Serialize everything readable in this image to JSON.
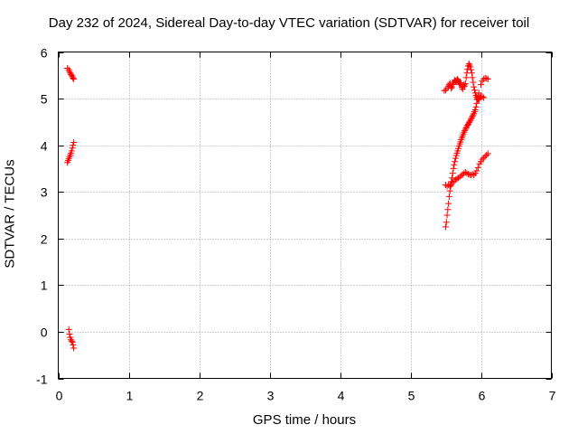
{
  "chart_data": {
    "type": "scatter",
    "title": "Day 232 of 2024, Sidereal Day-to-day VTEC variation (SDTVAR) for receiver toil",
    "xlabel": "GPS time / hours",
    "ylabel": "SDTVAR / TECUs",
    "xlim": [
      0,
      7
    ],
    "ylim": [
      -1,
      6
    ],
    "xticks": [
      0,
      1,
      2,
      3,
      4,
      5,
      6,
      7
    ],
    "yticks": [
      -1,
      0,
      1,
      2,
      3,
      4,
      5,
      6
    ],
    "grid": true,
    "marker": "+",
    "marker_color": "#ff0000",
    "series": [
      {
        "name": "SDTVAR",
        "points": [
          [
            0.13,
            5.65
          ],
          [
            0.15,
            5.62
          ],
          [
            0.16,
            5.58
          ],
          [
            0.17,
            5.55
          ],
          [
            0.18,
            5.52
          ],
          [
            0.19,
            5.5
          ],
          [
            0.2,
            5.47
          ],
          [
            0.21,
            5.44
          ],
          [
            0.22,
            5.42
          ],
          [
            0.13,
            3.63
          ],
          [
            0.14,
            3.67
          ],
          [
            0.15,
            3.71
          ],
          [
            0.16,
            3.75
          ],
          [
            0.17,
            3.79
          ],
          [
            0.18,
            3.83
          ],
          [
            0.19,
            3.88
          ],
          [
            0.2,
            3.94
          ],
          [
            0.21,
            4.0
          ],
          [
            0.22,
            4.06
          ],
          [
            0.15,
            0.05
          ],
          [
            0.16,
            -0.05
          ],
          [
            0.17,
            -0.12
          ],
          [
            0.18,
            -0.17
          ],
          [
            0.19,
            -0.2
          ],
          [
            0.2,
            -0.22
          ],
          [
            0.21,
            -0.28
          ],
          [
            0.22,
            -0.35
          ],
          [
            5.48,
            5.17
          ],
          [
            5.5,
            5.18
          ],
          [
            5.52,
            5.22
          ],
          [
            5.54,
            5.26
          ],
          [
            5.55,
            5.3
          ],
          [
            5.56,
            5.33
          ],
          [
            5.57,
            5.28
          ],
          [
            5.58,
            5.22
          ],
          [
            5.59,
            5.25
          ],
          [
            5.6,
            5.3
          ],
          [
            5.61,
            5.33
          ],
          [
            5.62,
            5.36
          ],
          [
            5.63,
            5.4
          ],
          [
            5.64,
            5.38
          ],
          [
            5.65,
            5.36
          ],
          [
            5.66,
            5.4
          ],
          [
            5.67,
            5.42
          ],
          [
            5.68,
            5.38
          ],
          [
            5.69,
            5.33
          ],
          [
            5.7,
            5.3
          ],
          [
            5.71,
            5.34
          ],
          [
            5.72,
            5.3
          ],
          [
            5.73,
            5.24
          ],
          [
            5.74,
            5.2
          ],
          [
            5.75,
            5.25
          ],
          [
            5.76,
            5.3
          ],
          [
            5.77,
            5.27
          ],
          [
            5.78,
            5.32
          ],
          [
            5.79,
            5.45
          ],
          [
            5.8,
            5.55
          ],
          [
            5.81,
            5.63
          ],
          [
            5.82,
            5.7
          ],
          [
            5.83,
            5.75
          ],
          [
            5.84,
            5.72
          ],
          [
            5.85,
            5.68
          ],
          [
            5.86,
            5.62
          ],
          [
            5.87,
            5.55
          ],
          [
            5.88,
            5.45
          ],
          [
            5.89,
            5.35
          ],
          [
            5.9,
            5.25
          ],
          [
            5.91,
            5.18
          ],
          [
            5.92,
            5.12
          ],
          [
            5.93,
            5.07
          ],
          [
            5.94,
            5.03
          ],
          [
            5.95,
            5.0
          ],
          [
            5.96,
            4.98
          ],
          [
            5.97,
            4.98
          ],
          [
            5.98,
            5.0
          ],
          [
            5.99,
            5.03
          ],
          [
            6.0,
            5.05
          ],
          [
            6.02,
            5.04
          ],
          [
            6.04,
            5.02
          ],
          [
            6.0,
            5.3
          ],
          [
            6.02,
            5.38
          ],
          [
            6.04,
            5.42
          ],
          [
            6.06,
            5.44
          ],
          [
            6.08,
            5.43
          ],
          [
            6.1,
            5.42
          ],
          [
            5.5,
            2.25
          ],
          [
            5.51,
            2.35
          ],
          [
            5.52,
            2.5
          ],
          [
            5.53,
            2.62
          ],
          [
            5.54,
            2.75
          ],
          [
            5.55,
            2.9
          ],
          [
            5.56,
            3.02
          ],
          [
            5.57,
            3.12
          ],
          [
            5.58,
            3.22
          ],
          [
            5.59,
            3.3
          ],
          [
            5.6,
            3.4
          ],
          [
            5.61,
            3.5
          ],
          [
            5.62,
            3.58
          ],
          [
            5.63,
            3.65
          ],
          [
            5.64,
            3.72
          ],
          [
            5.65,
            3.78
          ],
          [
            5.66,
            3.83
          ],
          [
            5.67,
            3.88
          ],
          [
            5.68,
            3.93
          ],
          [
            5.69,
            3.98
          ],
          [
            5.7,
            4.03
          ],
          [
            5.71,
            4.07
          ],
          [
            5.72,
            4.12
          ],
          [
            5.73,
            4.16
          ],
          [
            5.74,
            4.2
          ],
          [
            5.75,
            4.24
          ],
          [
            5.76,
            4.28
          ],
          [
            5.77,
            4.31
          ],
          [
            5.78,
            4.34
          ],
          [
            5.79,
            4.37
          ],
          [
            5.8,
            4.4
          ],
          [
            5.81,
            4.43
          ],
          [
            5.82,
            4.45
          ],
          [
            5.83,
            4.48
          ],
          [
            5.84,
            4.5
          ],
          [
            5.85,
            4.53
          ],
          [
            5.86,
            4.56
          ],
          [
            5.87,
            4.59
          ],
          [
            5.88,
            4.62
          ],
          [
            5.89,
            4.65
          ],
          [
            5.9,
            4.68
          ],
          [
            5.91,
            4.72
          ],
          [
            5.92,
            4.76
          ],
          [
            5.93,
            4.82
          ],
          [
            5.94,
            4.9
          ],
          [
            5.95,
            4.98
          ],
          [
            5.96,
            5.05
          ],
          [
            5.97,
            5.12
          ],
          [
            5.5,
            3.15
          ],
          [
            5.52,
            3.12
          ],
          [
            5.54,
            3.15
          ],
          [
            5.56,
            3.13
          ],
          [
            5.58,
            3.16
          ],
          [
            5.6,
            3.2
          ],
          [
            5.62,
            3.23
          ],
          [
            5.64,
            3.26
          ],
          [
            5.66,
            3.28
          ],
          [
            5.68,
            3.3
          ],
          [
            5.7,
            3.32
          ],
          [
            5.72,
            3.35
          ],
          [
            5.74,
            3.37
          ],
          [
            5.76,
            3.4
          ],
          [
            5.78,
            3.42
          ],
          [
            5.8,
            3.4
          ],
          [
            5.82,
            3.38
          ],
          [
            5.84,
            3.37
          ],
          [
            5.86,
            3.36
          ],
          [
            5.88,
            3.38
          ],
          [
            5.9,
            3.36
          ],
          [
            5.92,
            3.4
          ],
          [
            5.94,
            3.45
          ],
          [
            5.96,
            3.52
          ],
          [
            5.98,
            3.6
          ],
          [
            6.0,
            3.65
          ],
          [
            6.02,
            3.7
          ],
          [
            6.04,
            3.73
          ],
          [
            6.06,
            3.76
          ],
          [
            6.08,
            3.79
          ],
          [
            6.1,
            3.82
          ]
        ]
      }
    ]
  }
}
